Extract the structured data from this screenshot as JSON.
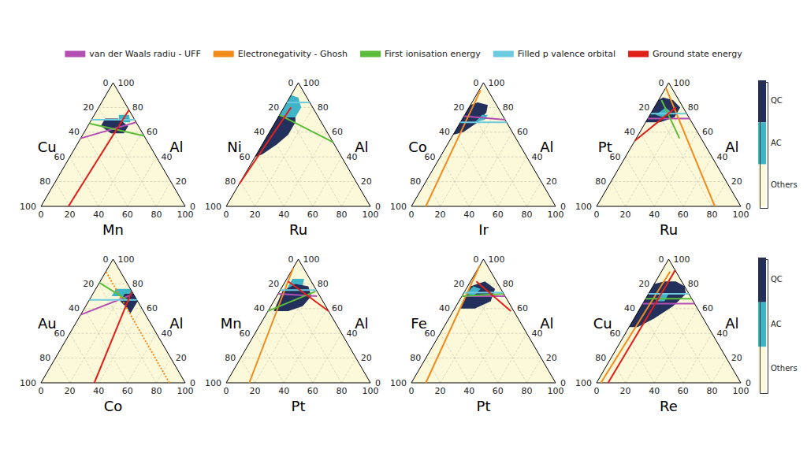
{
  "chart_data": [
    {
      "type": "ternary",
      "axes": {
        "left": "Cu",
        "right": "Al",
        "bottom": "Mn"
      },
      "lim": [
        0,
        100
      ],
      "ticks": [
        0,
        20,
        40,
        60,
        80,
        100
      ],
      "legend": "top",
      "grid": true,
      "regions": [
        {
          "name": "AC",
          "points": [
            [
              17,
              74
            ],
            [
              24,
              74
            ],
            [
              28,
              68
            ],
            [
              20,
              68
            ]
          ]
        },
        {
          "name": "QC",
          "points": [
            [
              9,
              65
            ],
            [
              19,
              59
            ],
            [
              28,
              59
            ],
            [
              28,
              65
            ],
            [
              18,
              71
            ],
            [
              9,
              71
            ]
          ]
        }
      ],
      "series": [
        {
          "name": "van der Waals radiu - UFF",
          "color": "#b24fb2",
          "values": [
            [
              0,
              55
            ],
            [
              32,
              68
            ]
          ]
        },
        {
          "name": "First ionisation energy",
          "color": "#5bbd3a",
          "values": [
            [
              0,
              67
            ],
            [
              43,
              57
            ]
          ]
        },
        {
          "name": "Filled p valence orbital",
          "color": "#6dcbe0",
          "values": [
            [
              0,
              70
            ],
            [
              30,
              70
            ]
          ]
        },
        {
          "name": "Ground state energy",
          "color": "#e0201b",
          "values": [
            [
              19,
              0
            ],
            [
              22,
              78
            ]
          ]
        }
      ]
    },
    {
      "type": "ternary",
      "axes": {
        "left": "Ni",
        "right": "Al",
        "bottom": "Ru"
      },
      "lim": [
        0,
        100
      ],
      "ticks": [
        0,
        20,
        40,
        60,
        80,
        100
      ],
      "legend": "top",
      "grid": true,
      "regions": [
        {
          "name": "AC",
          "points": [
            [
              0,
              74
            ],
            [
              6,
              72
            ],
            [
              12,
              72
            ],
            [
              12,
              80
            ],
            [
              6,
              88
            ],
            [
              0,
              90
            ]
          ]
        },
        {
          "name": "QC",
          "points": [
            [
              0,
              40
            ],
            [
              4,
              42
            ],
            [
              10,
              50
            ],
            [
              14,
              58
            ],
            [
              14,
              68
            ],
            [
              12,
              72
            ],
            [
              6,
              72
            ],
            [
              0,
              74
            ]
          ]
        }
      ],
      "series": [
        {
          "name": "First ionisation energy",
          "color": "#5bbd3a",
          "values": [
            [
              0,
              74
            ],
            [
              48,
              52
            ]
          ]
        },
        {
          "name": "Filled p valence orbital",
          "color": "#6dcbe0",
          "values": [
            [
              0,
              84
            ],
            [
              16,
              84
            ]
          ]
        },
        {
          "name": "Ground state energy",
          "color": "#e0201b",
          "values": [
            [
              0,
              18
            ],
            [
              5,
              80
            ]
          ]
        }
      ]
    },
    {
      "type": "ternary",
      "axes": {
        "left": "Co",
        "right": "Al",
        "bottom": "Ir"
      },
      "lim": [
        0,
        100
      ],
      "ticks": [
        0,
        20,
        40,
        60,
        80,
        100
      ],
      "legend": "top",
      "grid": true,
      "regions": [
        {
          "name": "QC",
          "points": [
            [
              0,
              58
            ],
            [
              6,
              60
            ],
            [
              12,
              68
            ],
            [
              14,
              76
            ],
            [
              12,
              82
            ],
            [
              4,
              84
            ],
            [
              0,
              82
            ]
          ]
        },
        {
          "name": "AC",
          "points": [
            [
              10,
              68
            ],
            [
              16,
              70
            ],
            [
              16,
              74
            ],
            [
              12,
              74
            ]
          ]
        }
      ],
      "series": [
        {
          "name": "van der Waals radiu - UFF",
          "color": "#b24fb2",
          "values": [
            [
              0,
              73
            ],
            [
              30,
              70
            ]
          ]
        },
        {
          "name": "Electronegativity - Ghosh",
          "color": "#f28a1c",
          "values": [
            [
              10,
              0
            ],
            [
              1,
              94
            ]
          ]
        },
        {
          "name": "Filled p valence orbital",
          "color": "#6dcbe0",
          "values": [
            [
              0,
              68
            ],
            [
              32,
              68
            ]
          ]
        }
      ]
    },
    {
      "type": "ternary",
      "axes": {
        "left": "Pt",
        "right": "Al",
        "bottom": "Ru"
      },
      "lim": [
        0,
        100
      ],
      "ticks": [
        0,
        20,
        40,
        60,
        80,
        100
      ],
      "legend": "top",
      "grid": true,
      "regions": [
        {
          "name": "QC",
          "points": [
            [
              0,
              68
            ],
            [
              10,
              68
            ],
            [
              18,
              72
            ],
            [
              18,
              80
            ],
            [
              10,
              86
            ],
            [
              2,
              88
            ],
            [
              0,
              86
            ]
          ]
        },
        {
          "name": "AC",
          "points": [
            [
              4,
              74
            ],
            [
              10,
              72
            ],
            [
              14,
              76
            ],
            [
              8,
              80
            ]
          ]
        }
      ],
      "series": [
        {
          "name": "van der Waals radiu - UFF",
          "color": "#b24fb2",
          "values": [
            [
              0,
              71
            ],
            [
              29,
              71
            ]
          ]
        },
        {
          "name": "Electronegativity - Ghosh",
          "color": "#f28a1c",
          "values": [
            [
              82,
              0
            ],
            [
              0,
              96
            ]
          ]
        },
        {
          "name": "First ionisation energy",
          "color": "#5bbd3a",
          "values": [
            [
              2,
              86
            ],
            [
              30,
              55
            ]
          ]
        },
        {
          "name": "Filled p valence orbital",
          "color": "#6dcbe0",
          "values": [
            [
              0,
              75
            ],
            [
              25,
              75
            ]
          ]
        },
        {
          "name": "Ground state energy",
          "color": "#e0201b",
          "values": [
            [
              0,
              53
            ],
            [
              15,
              80
            ]
          ]
        }
      ]
    },
    {
      "type": "ternary",
      "axes": {
        "left": "Au",
        "right": "Al",
        "bottom": "Co"
      },
      "lim": [
        0,
        100
      ],
      "ticks": [
        0,
        20,
        40,
        60,
        80,
        100
      ],
      "legend": "top",
      "grid": true,
      "regions": [
        {
          "name": "AC",
          "points": [
            [
              14,
              70
            ],
            [
              24,
              70
            ],
            [
              28,
              72
            ],
            [
              24,
              76
            ],
            [
              14,
              76
            ]
          ]
        },
        {
          "name": "QC",
          "points": [
            [
              22,
              66
            ],
            [
              30,
              60
            ],
            [
              34,
              56
            ],
            [
              34,
              66
            ],
            [
              28,
              72
            ],
            [
              22,
              72
            ]
          ]
        }
      ],
      "series": [
        {
          "name": "van der Waals radiu - UFF",
          "color": "#b24fb2",
          "values": [
            [
              0,
              55
            ],
            [
              27,
              71
            ]
          ]
        },
        {
          "name": "Electronegativity - Ghosh",
          "color": "#f28a1c",
          "line_style": "dotted",
          "values": [
            [
              89,
              0
            ],
            [
              0,
              90
            ]
          ]
        },
        {
          "name": "First ionisation energy",
          "color": "#5bbd3a",
          "values": [
            [
              0,
              81
            ],
            [
              28,
              66
            ]
          ]
        },
        {
          "name": "Filled p valence orbital",
          "color": "#6dcbe0",
          "values": [
            [
              0,
              67
            ],
            [
              33,
              67
            ]
          ]
        },
        {
          "name": "Ground state energy",
          "color": "#e0201b",
          "values": [
            [
              37,
              0
            ],
            [
              26,
              74
            ]
          ]
        }
      ]
    },
    {
      "type": "ternary",
      "axes": {
        "left": "Mn",
        "right": "Al",
        "bottom": "Pt"
      },
      "lim": [
        0,
        100
      ],
      "ticks": [
        0,
        20,
        40,
        60,
        80,
        100
      ],
      "legend": "top",
      "grid": true,
      "regions": [
        {
          "name": "AC",
          "points": [
            [
              4,
              76
            ],
            [
              14,
              78
            ],
            [
              12,
              84
            ],
            [
              4,
              84
            ]
          ]
        },
        {
          "name": "QC",
          "points": [
            [
              4,
              58
            ],
            [
              14,
              58
            ],
            [
              22,
              62
            ],
            [
              24,
              70
            ],
            [
              18,
              78
            ],
            [
              8,
              80
            ],
            [
              2,
              74
            ]
          ]
        }
      ],
      "series": [
        {
          "name": "van der Waals radiu - UFF",
          "color": "#b24fb2",
          "values": [
            [
              0,
              72
            ],
            [
              28,
              70
            ]
          ]
        },
        {
          "name": "Electronegativity - Ghosh",
          "color": "#f28a1c",
          "values": [
            [
              16,
              0
            ],
            [
              0,
              93
            ]
          ]
        },
        {
          "name": "First ionisation energy",
          "color": "#5bbd3a",
          "values": [
            [
              0,
              58
            ],
            [
              25,
              74
            ]
          ]
        },
        {
          "name": "Filled p valence orbital",
          "color": "#6dcbe0",
          "values": [
            [
              0,
              75
            ],
            [
              25,
              75
            ]
          ]
        },
        {
          "name": "Ground state energy",
          "color": "#e0201b",
          "values": [
            [
              2,
              82
            ],
            [
              42,
              58
            ]
          ]
        }
      ]
    },
    {
      "type": "ternary",
      "axes": {
        "left": "Fe",
        "right": "Al",
        "bottom": "Pt"
      },
      "lim": [
        0,
        100
      ],
      "ticks": [
        0,
        20,
        40,
        60,
        80,
        100
      ],
      "legend": "top",
      "grid": true,
      "regions": [
        {
          "name": "QC",
          "points": [
            [
              4,
              60
            ],
            [
              14,
              60
            ],
            [
              22,
              66
            ],
            [
              20,
              76
            ],
            [
              10,
              82
            ],
            [
              2,
              78
            ]
          ]
        },
        {
          "name": "AC",
          "points": [
            [
              2,
              72
            ],
            [
              8,
              70
            ],
            [
              10,
              76
            ],
            [
              4,
              78
            ]
          ]
        }
      ],
      "series": [
        {
          "name": "van der Waals radiu - UFF",
          "color": "#b24fb2",
          "values": [
            [
              0,
              70
            ],
            [
              30,
              70
            ]
          ]
        },
        {
          "name": "Electronegativity - Ghosh",
          "color": "#f28a1c",
          "values": [
            [
              10,
              0
            ],
            [
              0,
              95
            ]
          ]
        },
        {
          "name": "First ionisation energy",
          "color": "#5bbd3a",
          "values": [
            [
              0,
              70
            ],
            [
              28,
              72
            ]
          ]
        },
        {
          "name": "Filled p valence orbital",
          "color": "#6dcbe0",
          "values": [
            [
              0,
              73
            ],
            [
              27,
              73
            ]
          ]
        },
        {
          "name": "Ground state energy",
          "color": "#e0201b",
          "values": [
            [
              4,
              82
            ],
            [
              40,
              58
            ]
          ]
        }
      ]
    },
    {
      "type": "ternary",
      "axes": {
        "left": "Cu",
        "right": "Al",
        "bottom": "Re"
      },
      "lim": [
        0,
        100
      ],
      "ticks": [
        0,
        20,
        40,
        60,
        80,
        100
      ],
      "legend": "top",
      "grid": true,
      "regions": [
        {
          "name": "QC",
          "points": [
            [
              0,
              45
            ],
            [
              6,
              45
            ],
            [
              14,
              52
            ],
            [
              22,
              62
            ],
            [
              26,
              72
            ],
            [
              22,
              78
            ],
            [
              14,
              82
            ],
            [
              6,
              82
            ],
            [
              0,
              80
            ]
          ]
        },
        {
          "name": "AC",
          "points": [
            [
              8,
              66
            ],
            [
              14,
              66
            ],
            [
              14,
              72
            ],
            [
              8,
              72
            ]
          ]
        }
      ],
      "series": [
        {
          "name": "van der Waals radiu - UFF",
          "color": "#b24fb2",
          "values": [
            [
              0,
              64
            ],
            [
              36,
              64
            ]
          ]
        },
        {
          "name": "Electronegativity - Ghosh",
          "color": "#f28a1c",
          "values": [
            [
              3,
              0
            ],
            [
              6,
              90
            ]
          ]
        },
        {
          "name": "First ionisation energy",
          "color": "#5bbd3a",
          "values": [
            [
              0,
              68
            ],
            [
              32,
              68
            ]
          ]
        },
        {
          "name": "Filled p valence orbital",
          "color": "#6dcbe0",
          "values": [
            [
              0,
              72
            ],
            [
              28,
              72
            ]
          ]
        },
        {
          "name": "Ground state energy",
          "color": "#e0201b",
          "values": [
            [
              8,
              0
            ],
            [
              9,
              91
            ]
          ]
        }
      ]
    }
  ],
  "colorbar": {
    "labels": [
      "QC",
      "AC",
      "Others"
    ],
    "colors": [
      "#23305c",
      "#3fb4c6",
      "#fcf9da"
    ]
  }
}
